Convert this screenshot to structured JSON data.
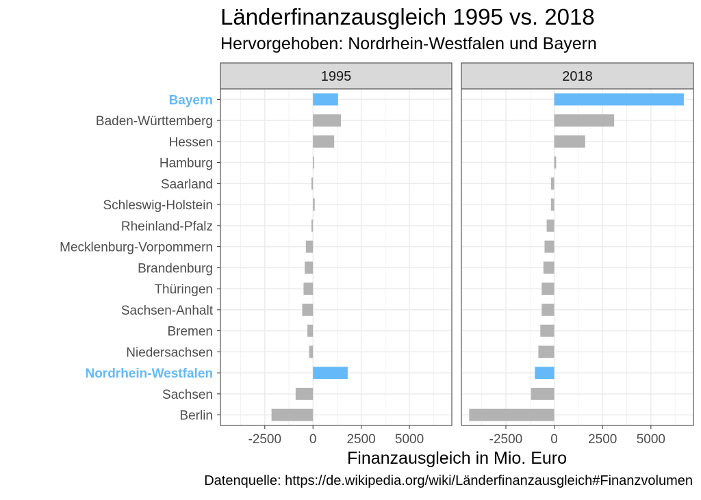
{
  "title": "Länderfinanzausgleich 1995 vs. 2018",
  "subtitle": "Hervorgehoben: Nordrhein-Westfalen und Bayern",
  "caption": "Datenquelle: https://de.wikipedia.org/wiki/Länderfinanzausgleich#Finanzvolumen",
  "colors": {
    "highlight": "#66b9f8",
    "bar": "#b3b3b3",
    "strip_bg": "#d9d9d9",
    "grid": "#ebebeb"
  },
  "chart_data": {
    "type": "bar",
    "orientation": "horizontal",
    "facets": [
      "1995",
      "2018"
    ],
    "categories": [
      "Bayern",
      "Baden-Württemberg",
      "Hessen",
      "Hamburg",
      "Saarland",
      "Schleswig-Holstein",
      "Rheinland-Pfalz",
      "Mecklenburg-Vorpommern",
      "Brandenburg",
      "Thüringen",
      "Sachsen-Anhalt",
      "Bremen",
      "Niedersachsen",
      "Nordrhein-Westfalen",
      "Sachsen",
      "Berlin"
    ],
    "highlighted": [
      "Bayern",
      "Nordrhein-Westfalen"
    ],
    "series": [
      {
        "facet": "1995",
        "values": [
          1300,
          1450,
          1100,
          60,
          -80,
          90,
          -80,
          -370,
          -430,
          -490,
          -560,
          -290,
          -200,
          1800,
          -900,
          -2150
        ]
      },
      {
        "facet": "2018",
        "values": [
          6700,
          3100,
          1600,
          100,
          -170,
          -170,
          -390,
          -500,
          -560,
          -650,
          -650,
          -720,
          -820,
          -1000,
          -1200,
          -4400
        ]
      }
    ],
    "xlabel": "Finanzausgleich in Mio. Euro",
    "ylabel": "",
    "xticks": [
      -2500,
      0,
      2500,
      5000
    ],
    "xlim": [
      -4800,
      7200
    ],
    "grid": true
  }
}
